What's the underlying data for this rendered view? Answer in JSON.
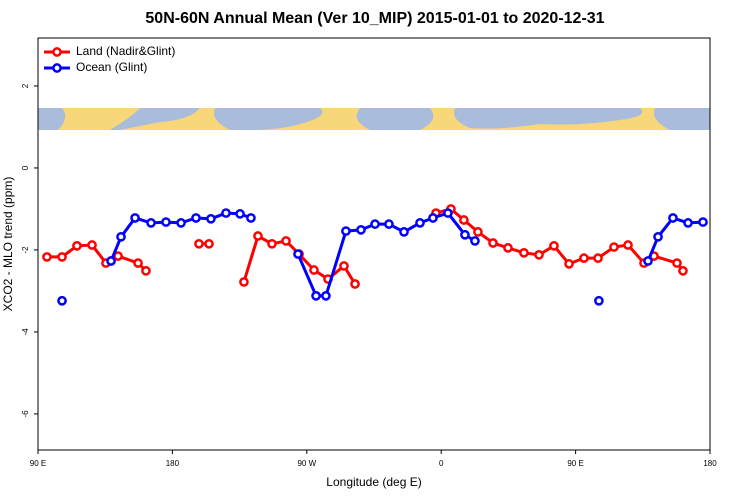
{
  "chart_data": {
    "type": "line",
    "title": "50N-60N Annual Mean (Ver 10_MIP)   2015-01-01 to 2020-12-31",
    "x_label": "Longitude (deg E)",
    "y_label": "XCO2 - MLO trend (ppm)",
    "xlim": [
      90,
      540
    ],
    "ylim": [
      -6.88,
      3.17
    ],
    "xticks": [
      {
        "value": 90,
        "label": "90 E"
      },
      180,
      {
        "value": 270,
        "label": "90 W"
      },
      {
        "value": 360,
        "label": "0"
      },
      {
        "value": 450,
        "label": "90 E"
      },
      {
        "value": 540,
        "label": "180"
      }
    ],
    "yticks": [
      2,
      0,
      -2,
      -4,
      -6
    ],
    "legend": "top-left",
    "series": [
      {
        "name": "Land (Nadir&Glint)",
        "color": "#ff0000",
        "x": [
          96.0,
          106.1,
          116.1,
          126.2,
          135.5,
          143.6,
          157.0,
          162.3,
          null,
          197.8,
          204.5,
          null,
          227.9,
          237.3,
          246.7,
          256.1,
          264.8,
          274.8,
          284.2,
          294.9,
          302.3,
          null,
          356.5,
          366.5,
          375.2,
          384.6,
          394.7,
          404.7,
          415.4,
          425.5,
          435.5,
          445.6,
          455.6,
          465.0,
          475.7,
          485.1,
          495.8,
          502.5,
          517.9,
          521.9
        ],
        "values": [
          -2.17,
          -2.17,
          -1.9,
          -1.88,
          -2.32,
          -2.15,
          -2.32,
          -2.51,
          null,
          -1.85,
          -1.85,
          null,
          -2.78,
          -1.66,
          -1.85,
          -1.78,
          -2.1,
          -2.49,
          -2.71,
          -2.39,
          -2.83,
          null,
          -1.1,
          -1.0,
          -1.27,
          -1.56,
          -1.83,
          -1.95,
          -2.07,
          -2.12,
          -1.9,
          -2.34,
          -2.2,
          -2.2,
          -1.93,
          -1.88,
          -2.32,
          -2.15,
          -2.32,
          -2.51
        ]
      },
      {
        "name": "Ocean (Glint)",
        "color": "#0000ff",
        "x": [
          106.1,
          null,
          138.9,
          145.6,
          155.0,
          165.7,
          175.7,
          185.8,
          195.8,
          205.8,
          215.9,
          225.3,
          232.6,
          null,
          264.1,
          276.2,
          282.8,
          296.2,
          306.3,
          315.7,
          325.0,
          335.1,
          345.8,
          354.5,
          364.5,
          375.9,
          382.6,
          null,
          465.6,
          null,
          498.5,
          505.2,
          515.2,
          525.3,
          535.3
        ],
        "values": [
          -3.24,
          null,
          -2.27,
          -1.68,
          -1.22,
          -1.34,
          -1.32,
          -1.34,
          -1.22,
          -1.24,
          -1.1,
          -1.12,
          -1.22,
          null,
          -2.1,
          -3.12,
          -3.12,
          -1.54,
          -1.51,
          -1.37,
          -1.37,
          -1.56,
          -1.34,
          -1.22,
          -1.1,
          -1.63,
          -1.78,
          null,
          -3.24,
          null,
          -2.27,
          -1.68,
          -1.22,
          -1.34,
          -1.32
        ]
      }
    ]
  }
}
